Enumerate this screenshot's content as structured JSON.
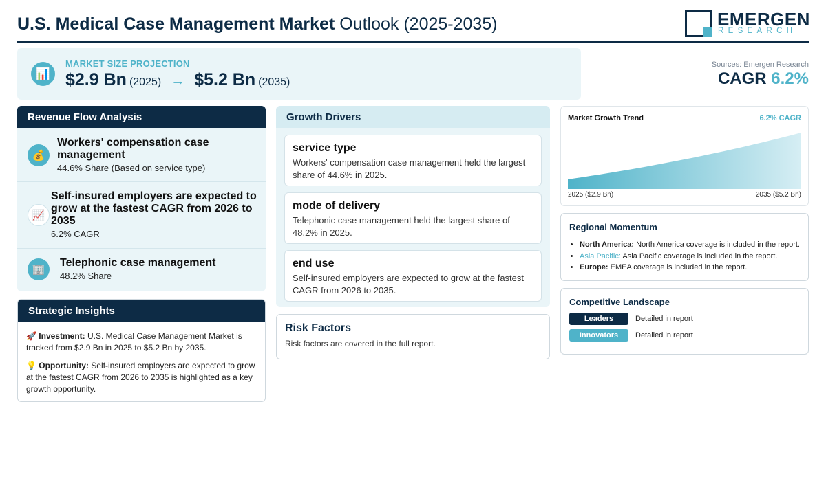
{
  "header": {
    "title_bold": "U.S. Medical Case Management Market",
    "title_light": "Outlook (2025-2035)",
    "logo_main": "EMERGEN",
    "logo_sub": "RESEARCH"
  },
  "projection": {
    "label": "MARKET SIZE PROJECTION",
    "start_value": "$2.9 Bn",
    "start_year": "(2025)",
    "arrow": "→",
    "end_value": "$5.2 Bn",
    "end_year": "(2035)",
    "icon": "bar-chart-icon"
  },
  "sources": "Sources: Emergen Research",
  "cagr": {
    "label": "CAGR",
    "value": "6.2%"
  },
  "revenue_flow": {
    "title": "Revenue Flow Analysis",
    "items": [
      {
        "icon": "money-bag-icon",
        "title": "Workers' compensation case management",
        "sub": "44.6% Share (Based on service type)"
      },
      {
        "icon": "chart-increasing-icon",
        "title": "Self-insured employers are expected to grow at the fastest CAGR from 2026 to 2035",
        "sub": "6.2% CAGR"
      },
      {
        "icon": "office-building-icon",
        "title": "Telephonic case management",
        "sub": "48.2% Share"
      }
    ]
  },
  "strategic": {
    "title": "Strategic Insights",
    "investment_label": "Investment:",
    "investment_text": "U.S. Medical Case Management Market is tracked from $2.9 Bn in 2025 to $5.2 Bn by 2035.",
    "opportunity_label": "Opportunity:",
    "opportunity_text": "Self-insured employers are expected to grow at the fastest CAGR from 2026 to 2035 is highlighted as a key growth opportunity."
  },
  "growth_drivers": {
    "title": "Growth Drivers",
    "items": [
      {
        "title": "service type",
        "text": "Workers' compensation case management held the largest share of 44.6% in 2025."
      },
      {
        "title": "mode of delivery",
        "text": "Telephonic case management held the largest share of 48.2% in 2025."
      },
      {
        "title": "end use",
        "text": "Self-insured employers are expected to grow at the fastest CAGR from 2026 to 2035."
      }
    ]
  },
  "risk": {
    "title": "Risk Factors",
    "text": "Risk factors are covered in the full report."
  },
  "trend": {
    "title": "Market Growth Trend",
    "cagr": "6.2% CAGR",
    "start_label": "2025 ($2.9 Bn)",
    "end_label": "2035 ($5.2 Bn)"
  },
  "chart_data": {
    "type": "area",
    "x": [
      2025,
      2035
    ],
    "y": [
      2.9,
      5.2
    ],
    "title": "Market Growth Trend",
    "annotation": "6.2% CAGR",
    "grid": false
  },
  "regional": {
    "title": "Regional Momentum",
    "items": [
      {
        "label": "North America:",
        "text": "North America coverage is included in the report."
      },
      {
        "label": "Asia Pacific:",
        "text": "Asia Pacific coverage is included in the report."
      },
      {
        "label": "Europe:",
        "text": "EMEA coverage is included in the report."
      }
    ]
  },
  "competitive": {
    "title": "Competitive Landscape",
    "rows": [
      {
        "badge": "Leaders",
        "text": "Detailed in report"
      },
      {
        "badge": "Innovators",
        "text": "Detailed in report"
      }
    ]
  },
  "colors": {
    "navy": "#0d2b45",
    "teal": "#4fb3c9",
    "panel": "#eaf5f8"
  }
}
